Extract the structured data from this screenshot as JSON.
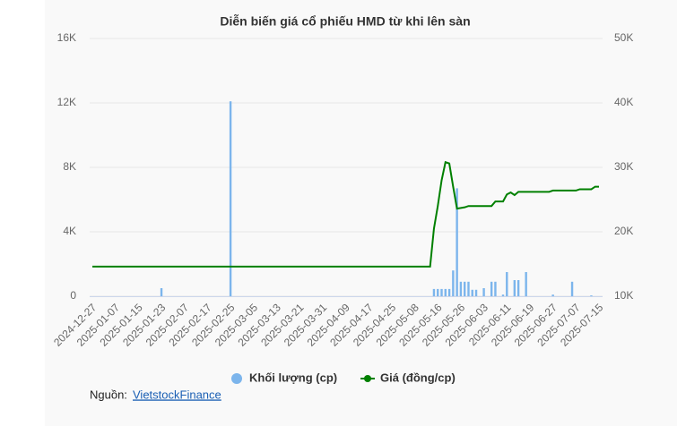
{
  "chart_data": {
    "type": "bar-line",
    "title": "Diễn biến giá cổ phiếu HMD từ khi lên sàn",
    "categories": [
      "2024-12-27",
      null,
      null,
      null,
      null,
      null,
      "2025-01-07",
      null,
      null,
      null,
      null,
      null,
      "2025-01-15",
      null,
      null,
      null,
      null,
      null,
      "2025-01-23",
      null,
      null,
      null,
      null,
      null,
      "2025-02-07",
      null,
      null,
      null,
      null,
      null,
      "2025-02-17",
      null,
      null,
      null,
      null,
      null,
      "2025-02-25",
      null,
      null,
      null,
      null,
      null,
      "2025-03-05",
      null,
      null,
      null,
      null,
      null,
      "2025-03-13",
      null,
      null,
      null,
      null,
      null,
      "2025-03-21",
      null,
      null,
      null,
      null,
      null,
      "2025-03-31",
      null,
      null,
      null,
      null,
      null,
      "2025-04-09",
      null,
      null,
      null,
      null,
      null,
      "2025-04-17",
      null,
      null,
      null,
      null,
      null,
      "2025-04-25",
      null,
      null,
      null,
      null,
      null,
      "2025-05-08",
      null,
      null,
      null,
      null,
      null,
      "2025-05-16",
      null,
      null,
      null,
      null,
      null,
      "2025-05-26",
      null,
      null,
      null,
      null,
      null,
      "2025-06-03",
      null,
      null,
      null,
      null,
      null,
      "2025-06-11",
      null,
      null,
      null,
      null,
      null,
      "2025-06-19",
      null,
      null,
      null,
      null,
      null,
      "2025-06-27",
      null,
      null,
      null,
      null,
      null,
      "2025-07-07",
      null,
      null,
      null,
      null,
      null,
      "2025-07-15"
    ],
    "series": [
      {
        "name": "Khối lượng (cp)",
        "color": "#7cb5ec",
        "kind": "bar",
        "axis": "y",
        "values": [
          0,
          0,
          0,
          0,
          0,
          0,
          0,
          0,
          0,
          0,
          0,
          0,
          0,
          0,
          0,
          0,
          0,
          0,
          500,
          0,
          0,
          0,
          0,
          0,
          0,
          0,
          0,
          0,
          0,
          0,
          0,
          0,
          0,
          0,
          0,
          0,
          12100,
          0,
          0,
          0,
          0,
          0,
          0,
          0,
          0,
          0,
          0,
          0,
          0,
          0,
          0,
          0,
          0,
          0,
          0,
          0,
          0,
          0,
          0,
          0,
          0,
          0,
          0,
          0,
          0,
          0,
          0,
          0,
          0,
          0,
          0,
          0,
          0,
          0,
          0,
          0,
          0,
          0,
          0,
          0,
          0,
          0,
          0,
          0,
          0,
          0,
          0,
          0,
          0,
          450,
          450,
          450,
          450,
          450,
          1600,
          6700,
          900,
          900,
          900,
          400,
          400,
          0,
          500,
          0,
          900,
          900,
          0,
          100,
          1500,
          0,
          1000,
          1000,
          0,
          1500,
          0,
          0,
          0,
          0,
          0,
          0,
          100,
          0,
          0,
          0,
          0,
          900,
          0,
          0,
          0,
          0,
          50,
          0,
          0
        ]
      },
      {
        "name": "Giá (đồng/cp)",
        "color": "#008000",
        "kind": "line",
        "axis": "y2",
        "values": [
          14600,
          14600,
          14600,
          14600,
          14600,
          14600,
          14600,
          14600,
          14600,
          14600,
          14600,
          14600,
          14600,
          14600,
          14600,
          14600,
          14600,
          14600,
          14600,
          14600,
          14600,
          14600,
          14600,
          14600,
          14600,
          14600,
          14600,
          14600,
          14600,
          14600,
          14600,
          14600,
          14600,
          14600,
          14600,
          14600,
          14600,
          14600,
          14600,
          14600,
          14600,
          14600,
          14600,
          14600,
          14600,
          14600,
          14600,
          14600,
          14600,
          14600,
          14600,
          14600,
          14600,
          14600,
          14600,
          14600,
          14600,
          14600,
          14600,
          14600,
          14600,
          14600,
          14600,
          14600,
          14600,
          14600,
          14600,
          14600,
          14600,
          14600,
          14600,
          14600,
          14600,
          14600,
          14600,
          14600,
          14600,
          14600,
          14600,
          14600,
          14600,
          14600,
          14600,
          14600,
          14600,
          14600,
          14600,
          14600,
          14600,
          20500,
          24000,
          28000,
          30800,
          30600,
          27000,
          23600,
          23700,
          23800,
          24000,
          24000,
          24000,
          24000,
          24000,
          24000,
          24000,
          24700,
          24700,
          24700,
          25800,
          26100,
          25700,
          26200,
          26200,
          26200,
          26200,
          26200,
          26200,
          26200,
          26200,
          26200,
          26400,
          26400,
          26400,
          26400,
          26400,
          26400,
          26400,
          26600,
          26600,
          26600,
          26600,
          27000,
          27000
        ]
      }
    ],
    "ylim": [
      0,
      16000
    ],
    "yticks": [
      0,
      {
        "value": 4000,
        "label": "4K"
      },
      {
        "value": 8000,
        "label": "8K"
      },
      {
        "value": 12000,
        "label": "12K"
      },
      {
        "value": 16000,
        "label": "16K"
      }
    ],
    "y2lim": [
      10000,
      50000
    ],
    "y2ticks": [
      {
        "value": 10000,
        "label": "10K"
      },
      {
        "value": 20000,
        "label": "20K"
      },
      {
        "value": 30000,
        "label": "30K"
      },
      {
        "value": 40000,
        "label": "40K"
      },
      {
        "value": 50000,
        "label": "50K"
      }
    ],
    "grid": true,
    "legend": "bottom",
    "source_label": "Nguồn:",
    "source": "VietstockFinance"
  }
}
